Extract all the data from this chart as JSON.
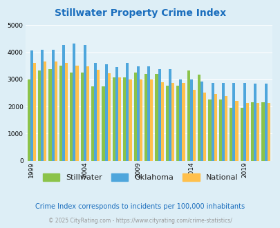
{
  "title": "Stillwater Property Crime Index",
  "years": [
    1999,
    2000,
    2001,
    2002,
    2003,
    2004,
    2005,
    2006,
    2007,
    2008,
    2009,
    2010,
    2011,
    2012,
    2013,
    2014,
    2015,
    2016,
    2017,
    2018,
    2019,
    2020,
    2021
  ],
  "stillwater": [
    3000,
    3330,
    3390,
    3500,
    3250,
    3250,
    2730,
    2730,
    3060,
    3060,
    3250,
    3200,
    3200,
    2770,
    2770,
    3330,
    3180,
    2260,
    2260,
    1960,
    1960,
    2150,
    2150
  ],
  "oklahoma": [
    4060,
    4080,
    4080,
    4260,
    4310,
    4260,
    3600,
    3560,
    3460,
    3600,
    3480,
    3480,
    3380,
    3380,
    2990,
    2990,
    2920,
    2870,
    2870,
    2870,
    2870,
    2840,
    2840
  ],
  "national": [
    3600,
    3670,
    3670,
    3600,
    3500,
    3480,
    3360,
    3230,
    3060,
    3000,
    2990,
    2990,
    2900,
    2870,
    2870,
    2610,
    2500,
    2470,
    2380,
    2200,
    2140,
    2140,
    2130
  ],
  "stillwater_color": "#8bc34a",
  "oklahoma_color": "#4ea6dc",
  "national_color": "#ffc04c",
  "outer_bg": "#ddeef6",
  "plot_bg": "#ddeef6",
  "chart_bg": "#e4f2f8",
  "title_color": "#1a6ebd",
  "ylabel_max": 5000,
  "yticks": [
    0,
    1000,
    2000,
    3000,
    4000,
    5000
  ],
  "annotation": "Crime Index corresponds to incidents per 100,000 inhabitants",
  "footer": "© 2025 CityRating.com - https://www.cityrating.com/crime-statistics/",
  "annotation_color": "#1a6ebd",
  "footer_color": "#999999",
  "xtick_labels": [
    "1999",
    "2004",
    "2009",
    "2014",
    "2019"
  ],
  "xtick_years": [
    1999,
    2004,
    2009,
    2014,
    2019
  ]
}
